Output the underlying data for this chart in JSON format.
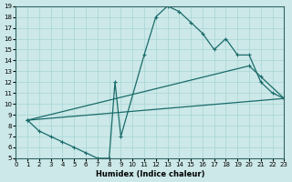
{
  "xlabel": "Humidex (Indice chaleur)",
  "ylabel": "",
  "xlim": [
    0,
    23
  ],
  "ylim": [
    5,
    19
  ],
  "xticks": [
    0,
    1,
    2,
    3,
    4,
    5,
    6,
    7,
    8,
    9,
    10,
    11,
    12,
    13,
    14,
    15,
    16,
    17,
    18,
    19,
    20,
    21,
    22,
    23
  ],
  "yticks": [
    5,
    6,
    7,
    8,
    9,
    10,
    11,
    12,
    13,
    14,
    15,
    16,
    17,
    18,
    19
  ],
  "bg_color": "#cce8e8",
  "line_color": "#1a6b6b",
  "line1_x": [
    1,
    2,
    3,
    4,
    5,
    6,
    7,
    8,
    8.5,
    9,
    11,
    12,
    13,
    14,
    15,
    16,
    17,
    18,
    19,
    20,
    21,
    22,
    23
  ],
  "line1_y": [
    8.5,
    7.5,
    7,
    6.5,
    6,
    5.5,
    5,
    5,
    12,
    7,
    14.5,
    18,
    19,
    18.5,
    17.5,
    16.5,
    15,
    16,
    14.5,
    14.5,
    12,
    11,
    10.5
  ],
  "line2_x": [
    1,
    20,
    21,
    23
  ],
  "line2_y": [
    8.5,
    13.5,
    12.5,
    10.5
  ],
  "line3_x": [
    1,
    23
  ],
  "line3_y": [
    8.5,
    10.5
  ]
}
